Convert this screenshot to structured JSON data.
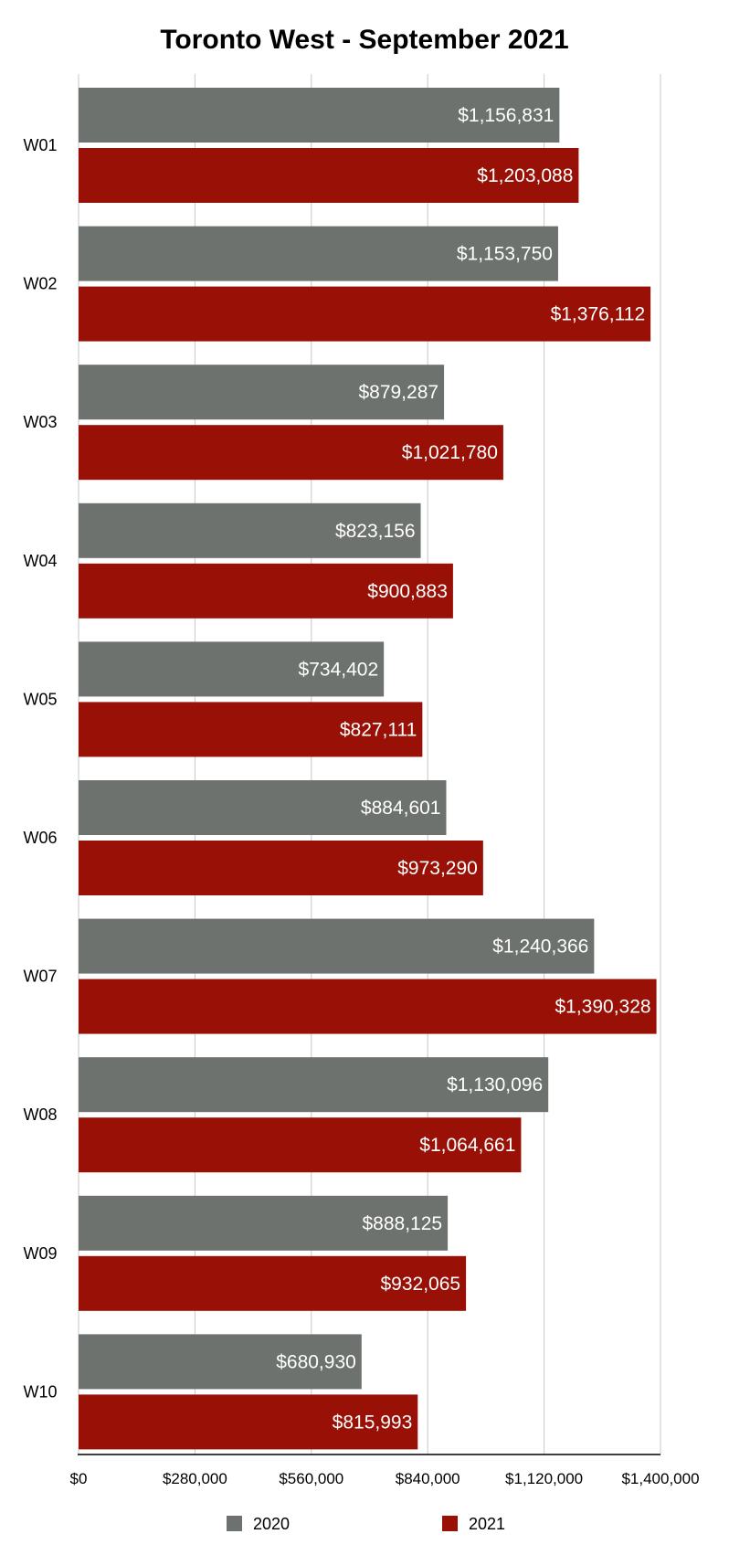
{
  "chart_data": {
    "type": "bar",
    "orientation": "horizontal",
    "title": "Toronto West - September 2021",
    "xlabel": "",
    "ylabel": "",
    "categories": [
      "W01",
      "W02",
      "W03",
      "W04",
      "W05",
      "W06",
      "W07",
      "W08",
      "W09",
      "W10"
    ],
    "series": [
      {
        "name": "2020",
        "color": "#6d726e",
        "values": [
          1156831,
          1153750,
          879287,
          823156,
          734402,
          884601,
          1240366,
          1130096,
          888125,
          680930
        ],
        "labels": [
          "$1,156,831",
          "$1,153,750",
          "$879,287",
          "$823,156",
          "$734,402",
          "$884,601",
          "$1,240,366",
          "$1,130,096",
          "$888,125",
          "$680,930"
        ]
      },
      {
        "name": "2021",
        "color": "#991106",
        "values": [
          1203088,
          1376112,
          1021780,
          900883,
          827111,
          973290,
          1390328,
          1064661,
          932065,
          815993
        ],
        "labels": [
          "$1,203,088",
          "$1,376,112",
          "$1,021,780",
          "$900,883",
          "$827,111",
          "$973,290",
          "$1,390,328",
          "$1,064,661",
          "$932,065",
          "$815,993"
        ]
      }
    ],
    "xlim": [
      0,
      1400000
    ],
    "ticks": [
      0,
      280000,
      560000,
      840000,
      1120000,
      1400000
    ],
    "tick_labels": [
      "$0",
      "$280,000",
      "$560,000",
      "$840,000",
      "$1,120,000",
      "$1,400,000"
    ],
    "grid": true,
    "legend_position": "bottom"
  }
}
